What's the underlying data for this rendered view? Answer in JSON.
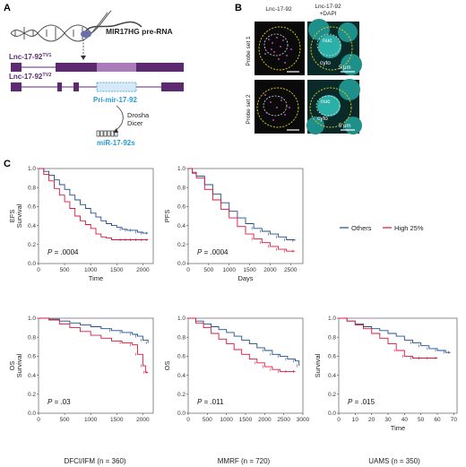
{
  "panels": {
    "a": "A",
    "b": "B",
    "c": "C"
  },
  "panel_a": {
    "pre_rna": "MIR17HG pre-RNA",
    "tv1": "Lnc-17-92",
    "tv1_sup": "TV1",
    "tv2": "Lnc-17-92",
    "tv2_sup": "TV2",
    "pri": "Pri-mir-17-92",
    "drosha": "Drosha",
    "dicer": "Dicer",
    "mirs": "miR-17-92s"
  },
  "panel_b": {
    "col1": "Lnc-17-92",
    "col2a": "Lnc-17-92",
    "col2b": "+DAPI",
    "row1": "Probe set 1",
    "row2": "Probe set 2",
    "nuc": "nuc",
    "cyto": "cyto",
    "scale": "5 μm"
  },
  "colors": {
    "others": "#1f4e8c",
    "high": "#e0143c",
    "purple": "#5c2a6e",
    "cyan": "#2b9bd3",
    "nucleus": "#25a6a0"
  },
  "legend": {
    "others": "Others",
    "high": "High 25%"
  },
  "captions": [
    "DFCI/IFM (n = 360)",
    "MMRF (n = 720)",
    "UAMS (n = 350)"
  ],
  "chart_data": [
    {
      "type": "line",
      "ylabel_top": "EFS",
      "ylabel": "Survival",
      "xlabel": "Time",
      "xlim": [
        0,
        2200
      ],
      "ylim": [
        0,
        1.0
      ],
      "xticks": [
        0,
        500,
        1000,
        1500,
        2000
      ],
      "xtick_labels": [
        "0",
        "500",
        "1000",
        "1500",
        "2000"
      ],
      "yticks": [
        0,
        0.2,
        0.4,
        0.6,
        0.8,
        1.0
      ],
      "ytick_labels": [
        "0.0",
        "0.2",
        "0.4",
        "0.6",
        "0.8",
        "1.0"
      ],
      "p_label": "P",
      "p_value": " = .0004",
      "series": [
        {
          "name": "Others",
          "x": [
            0,
            100,
            200,
            300,
            400,
            500,
            600,
            700,
            800,
            900,
            1000,
            1100,
            1200,
            1300,
            1400,
            1500,
            1600,
            1700,
            1800,
            1900,
            2000,
            2100
          ],
          "y": [
            1.0,
            0.97,
            0.93,
            0.88,
            0.83,
            0.78,
            0.72,
            0.67,
            0.62,
            0.58,
            0.53,
            0.49,
            0.45,
            0.42,
            0.4,
            0.38,
            0.36,
            0.35,
            0.35,
            0.33,
            0.32,
            0.32
          ]
        },
        {
          "name": "High 25%",
          "x": [
            0,
            100,
            200,
            300,
            400,
            500,
            600,
            700,
            800,
            900,
            1000,
            1100,
            1200,
            1300,
            1400,
            1500,
            1600,
            1700,
            1800,
            1900,
            2000,
            2100
          ],
          "y": [
            1.0,
            0.94,
            0.87,
            0.79,
            0.72,
            0.65,
            0.58,
            0.5,
            0.45,
            0.41,
            0.37,
            0.31,
            0.28,
            0.27,
            0.25,
            0.25,
            0.25,
            0.25,
            0.25,
            0.25,
            0.25,
            0.25
          ]
        }
      ]
    },
    {
      "type": "line",
      "ylabel": "PFS",
      "xlabel": "Days",
      "xlim": [
        0,
        2800
      ],
      "ylim": [
        0,
        1.0
      ],
      "xticks": [
        0,
        500,
        1000,
        1500,
        2000,
        2500
      ],
      "xtick_labels": [
        "0",
        "500",
        "1000",
        "1500",
        "2000",
        "2500"
      ],
      "yticks": [
        0,
        0.2,
        0.4,
        0.6,
        0.8,
        1.0
      ],
      "ytick_labels": [
        "0.0",
        "0.2",
        "0.4",
        "0.6",
        "0.8",
        "1.0"
      ],
      "p_label": "P",
      "p_value": " = .0004",
      "series": [
        {
          "name": "Others",
          "x": [
            0,
            100,
            200,
            400,
            600,
            800,
            1000,
            1200,
            1400,
            1600,
            1800,
            2000,
            2200,
            2400,
            2600
          ],
          "y": [
            1.0,
            0.96,
            0.92,
            0.83,
            0.73,
            0.64,
            0.55,
            0.48,
            0.42,
            0.37,
            0.34,
            0.31,
            0.28,
            0.25,
            0.24
          ]
        },
        {
          "name": "High 25%",
          "x": [
            0,
            100,
            200,
            400,
            600,
            800,
            1000,
            1200,
            1400,
            1600,
            1800,
            2000,
            2200,
            2400,
            2600
          ],
          "y": [
            1.0,
            0.95,
            0.9,
            0.78,
            0.67,
            0.57,
            0.48,
            0.39,
            0.31,
            0.26,
            0.22,
            0.18,
            0.15,
            0.13,
            0.13
          ]
        }
      ]
    },
    {
      "type": "line",
      "ylabel_top": "OS",
      "ylabel": "Survival",
      "xlabel": "",
      "xlim": [
        0,
        2200
      ],
      "ylim": [
        0,
        1.0
      ],
      "xticks": [
        0,
        500,
        1000,
        1500,
        2000
      ],
      "xtick_labels": [
        "0",
        "500",
        "1000",
        "1500",
        "2000"
      ],
      "yticks": [
        0,
        0.2,
        0.4,
        0.6,
        0.8,
        1.0
      ],
      "ytick_labels": [
        "0.0",
        "0.2",
        "0.4",
        "0.6",
        "0.8",
        "1.0"
      ],
      "p_label": "P",
      "p_value": " = .03",
      "series": [
        {
          "name": "Others",
          "x": [
            0,
            200,
            400,
            600,
            800,
            1000,
            1200,
            1400,
            1600,
            1800,
            1900,
            2000,
            2100
          ],
          "y": [
            1.0,
            0.99,
            0.97,
            0.95,
            0.93,
            0.91,
            0.89,
            0.87,
            0.85,
            0.83,
            0.81,
            0.77,
            0.74
          ]
        },
        {
          "name": "High 25%",
          "x": [
            0,
            200,
            400,
            600,
            800,
            1000,
            1200,
            1400,
            1600,
            1800,
            1900,
            2000,
            2050,
            2100
          ],
          "y": [
            1.0,
            0.98,
            0.94,
            0.9,
            0.86,
            0.82,
            0.79,
            0.76,
            0.74,
            0.72,
            0.62,
            0.5,
            0.43,
            0.43
          ]
        }
      ]
    },
    {
      "type": "line",
      "ylabel": "OS",
      "xlabel": "",
      "xlim": [
        0,
        3000
      ],
      "ylim": [
        0,
        1.0
      ],
      "xticks": [
        0,
        500,
        1000,
        1500,
        2000,
        2500,
        3000
      ],
      "xtick_labels": [
        "0",
        "500",
        "1000",
        "1500",
        "2000",
        "2500",
        "3000"
      ],
      "yticks": [
        0,
        0.2,
        0.4,
        0.6,
        0.8,
        1.0
      ],
      "ytick_labels": [
        "0.0",
        "0.2",
        "0.4",
        "0.6",
        "0.8",
        "1.0"
      ],
      "p_label": "P",
      "p_value": " = .011",
      "series": [
        {
          "name": "Others",
          "x": [
            0,
            200,
            400,
            600,
            800,
            1000,
            1200,
            1400,
            1600,
            1800,
            2000,
            2200,
            2400,
            2600,
            2800,
            2900
          ],
          "y": [
            1.0,
            0.97,
            0.94,
            0.91,
            0.88,
            0.85,
            0.81,
            0.77,
            0.73,
            0.69,
            0.66,
            0.62,
            0.6,
            0.57,
            0.55,
            0.5
          ]
        },
        {
          "name": "High 25%",
          "x": [
            0,
            200,
            400,
            600,
            800,
            1000,
            1200,
            1400,
            1600,
            1800,
            2000,
            2200,
            2400,
            2600,
            2800
          ],
          "y": [
            1.0,
            0.95,
            0.9,
            0.84,
            0.78,
            0.73,
            0.67,
            0.62,
            0.57,
            0.53,
            0.49,
            0.46,
            0.44,
            0.44,
            0.44
          ]
        }
      ]
    },
    {
      "type": "line",
      "ylabel": "Survival",
      "xlabel": "Time",
      "xlim": [
        0,
        72
      ],
      "ylim": [
        0,
        1.0
      ],
      "xticks": [
        0,
        10,
        20,
        30,
        40,
        50,
        60,
        70
      ],
      "xtick_labels": [
        "0",
        "10",
        "20",
        "30",
        "40",
        "50",
        "60",
        "70"
      ],
      "yticks": [
        0,
        0.2,
        0.4,
        0.6,
        0.8,
        1.0
      ],
      "ytick_labels": [
        "0.0",
        "0.2",
        "0.4",
        "0.6",
        "0.8",
        "1.0"
      ],
      "p_label": "P",
      "p_value": " = .015",
      "series": [
        {
          "name": "Others",
          "x": [
            0,
            5,
            10,
            15,
            20,
            25,
            30,
            35,
            40,
            45,
            50,
            55,
            60,
            65,
            68
          ],
          "y": [
            1.0,
            0.97,
            0.94,
            0.91,
            0.89,
            0.87,
            0.84,
            0.81,
            0.77,
            0.74,
            0.71,
            0.68,
            0.66,
            0.64,
            0.64
          ]
        },
        {
          "name": "High 25%",
          "x": [
            0,
            5,
            10,
            15,
            20,
            25,
            30,
            35,
            40,
            45,
            50,
            55,
            60
          ],
          "y": [
            1.0,
            0.97,
            0.93,
            0.89,
            0.84,
            0.79,
            0.73,
            0.66,
            0.6,
            0.58,
            0.58,
            0.58,
            0.58
          ]
        }
      ]
    }
  ]
}
